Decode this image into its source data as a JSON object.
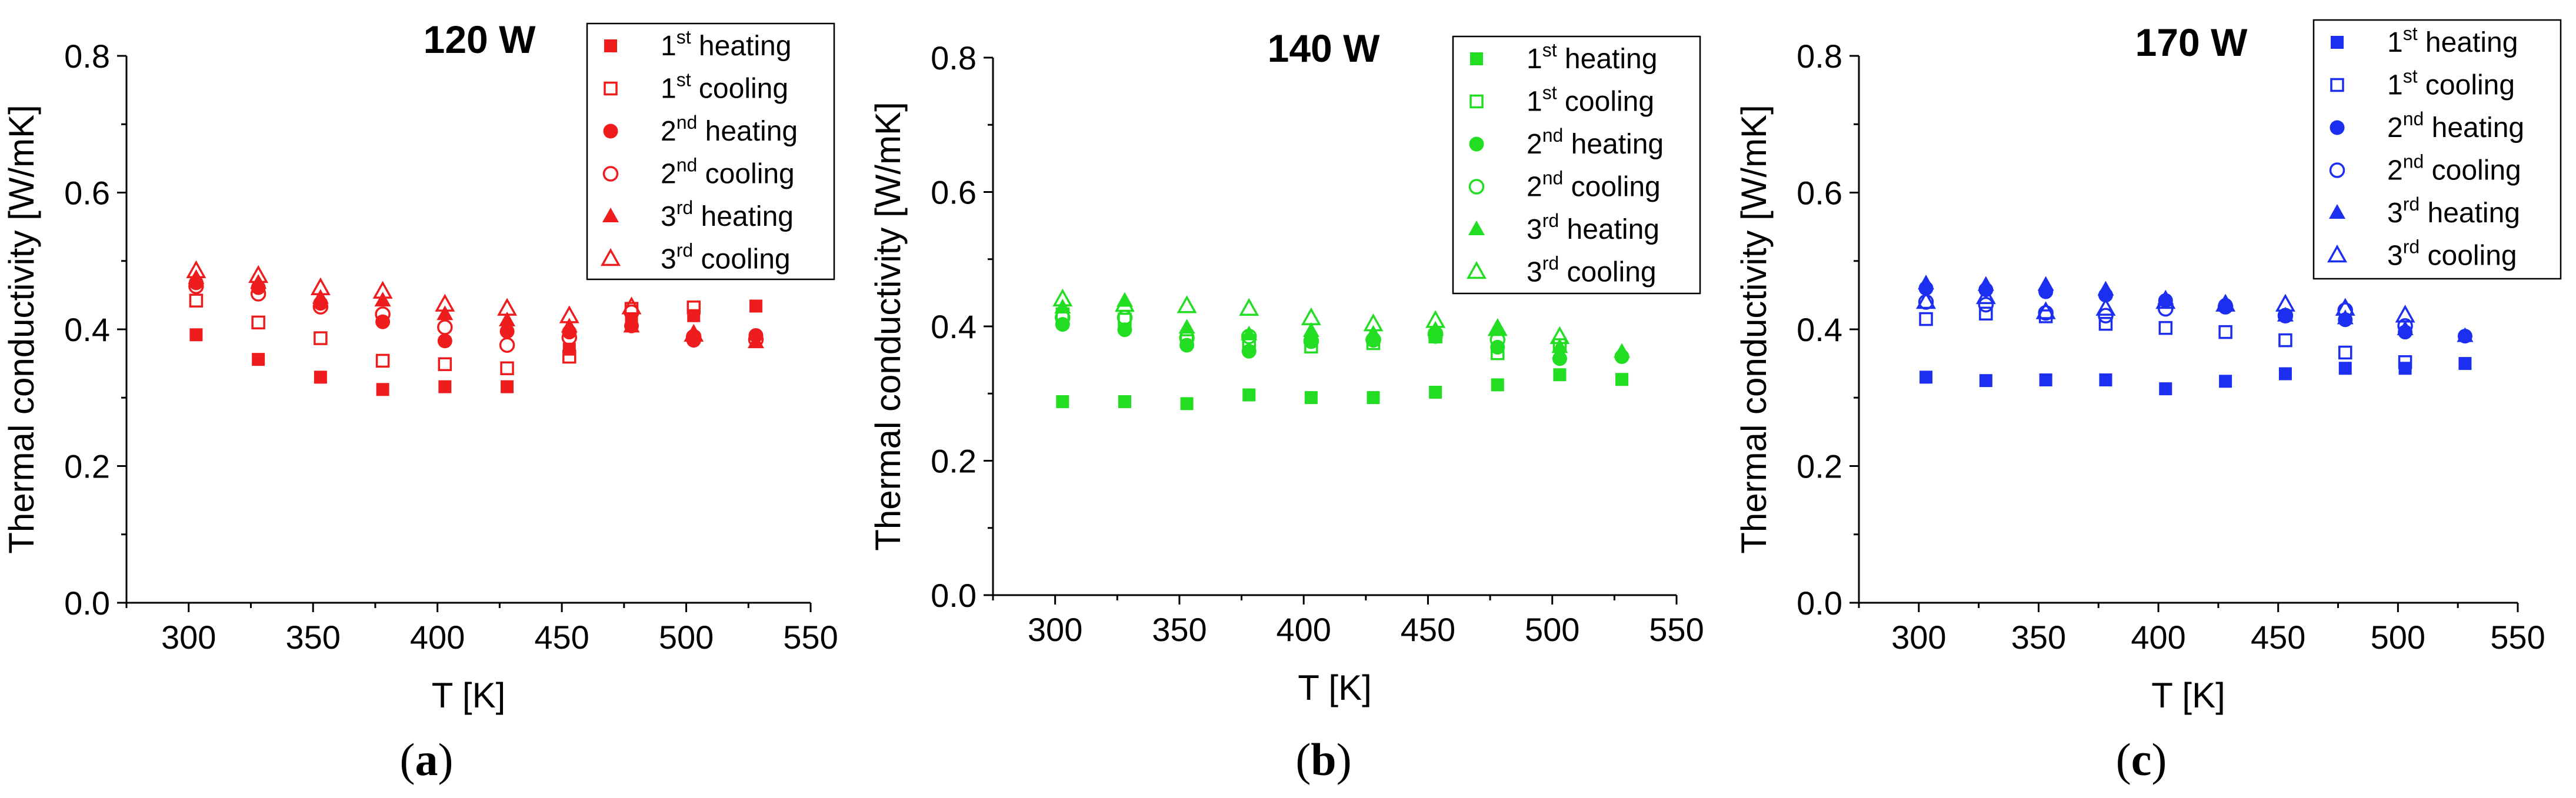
{
  "chart_data": [
    {
      "type": "scatter",
      "panel_label": "(a)",
      "title": "120 W",
      "xlabel": "T [K]",
      "ylabel": "Thermal conductivity [W/mK]",
      "xlim": [
        275,
        550
      ],
      "ylim": [
        0.0,
        0.8
      ],
      "xticks": [
        "300",
        "350",
        "400",
        "450",
        "500",
        "550"
      ],
      "yticks": [
        "0.0",
        "0.2",
        "0.4",
        "0.6",
        "0.8"
      ],
      "color": "#ee1c1c",
      "legend_position": "top-right",
      "series": [
        {
          "name": "1st heating",
          "base": "1",
          "sup": "st",
          "suffix": " heating",
          "marker": "square",
          "filled": true,
          "x": [
            303,
            328,
            353,
            378,
            403,
            428,
            453,
            478,
            503,
            528
          ],
          "y": [
            0.392,
            0.356,
            0.33,
            0.312,
            0.316,
            0.316,
            0.371,
            0.412,
            0.42,
            0.434
          ]
        },
        {
          "name": "1st cooling",
          "base": "1",
          "sup": "st",
          "suffix": " cooling",
          "marker": "square",
          "filled": false,
          "x": [
            303,
            328,
            353,
            378,
            403,
            428,
            453,
            478,
            503
          ],
          "y": [
            0.442,
            0.41,
            0.387,
            0.354,
            0.349,
            0.343,
            0.36,
            0.43,
            0.432
          ]
        },
        {
          "name": "2nd heating",
          "base": "2",
          "sup": "nd",
          "suffix": " heating",
          "marker": "circle",
          "filled": true,
          "x": [
            303,
            328,
            353,
            378,
            403,
            428,
            453,
            478,
            503,
            528
          ],
          "y": [
            0.468,
            0.461,
            0.438,
            0.411,
            0.383,
            0.397,
            0.396,
            0.405,
            0.384,
            0.391
          ]
        },
        {
          "name": "2nd cooling",
          "base": "2",
          "sup": "nd",
          "suffix": " cooling",
          "marker": "circle",
          "filled": false,
          "x": [
            303,
            328,
            353,
            378,
            403,
            428,
            453,
            478,
            503,
            528
          ],
          "y": [
            0.463,
            0.452,
            0.433,
            0.422,
            0.403,
            0.377,
            0.388,
            0.425,
            0.389,
            0.385
          ]
        },
        {
          "name": "3rd heating",
          "base": "3",
          "sup": "rd",
          "suffix": " heating",
          "marker": "triangle",
          "filled": true,
          "x": [
            303,
            328,
            353,
            378,
            403,
            428,
            453,
            478,
            503,
            528
          ],
          "y": [
            0.475,
            0.468,
            0.446,
            0.442,
            0.422,
            0.413,
            0.404,
            0.404,
            0.391,
            0.381
          ]
        },
        {
          "name": "3rd cooling",
          "base": "3",
          "sup": "rd",
          "suffix": " cooling",
          "marker": "triangle",
          "filled": false,
          "x": [
            303,
            328,
            353,
            378,
            403,
            428,
            453,
            478,
            503
          ],
          "y": [
            0.485,
            0.478,
            0.46,
            0.455,
            0.436,
            0.43,
            0.419,
            0.432,
            0.392
          ]
        }
      ]
    },
    {
      "type": "scatter",
      "panel_label": "(b)",
      "title": "140 W",
      "xlabel": "T [K]",
      "ylabel": "Thermal conductivity [W/mK]",
      "xlim": [
        275,
        550
      ],
      "ylim": [
        0.0,
        0.8
      ],
      "xticks": [
        "300",
        "350",
        "400",
        "450",
        "500",
        "550"
      ],
      "yticks": [
        "0.0",
        "0.2",
        "0.4",
        "0.6",
        "0.8"
      ],
      "color": "#22dd22",
      "legend_position": "top-right",
      "series": [
        {
          "name": "1st heating",
          "base": "1",
          "sup": "st",
          "suffix": " heating",
          "marker": "square",
          "filled": true,
          "x": [
            303,
            328,
            353,
            378,
            403,
            428,
            453,
            478,
            503,
            528
          ],
          "y": [
            0.288,
            0.288,
            0.285,
            0.298,
            0.294,
            0.294,
            0.302,
            0.313,
            0.328,
            0.321
          ]
        },
        {
          "name": "1st cooling",
          "base": "1",
          "sup": "st",
          "suffix": " cooling",
          "marker": "square",
          "filled": false,
          "x": [
            303,
            328,
            353,
            378,
            403,
            428,
            453,
            478,
            503
          ],
          "y": [
            0.418,
            0.41,
            0.378,
            0.378,
            0.37,
            0.375,
            0.385,
            0.36,
            0.372
          ]
        },
        {
          "name": "2nd heating",
          "base": "2",
          "sup": "nd",
          "suffix": " heating",
          "marker": "circle",
          "filled": true,
          "x": [
            303,
            328,
            353,
            378,
            403,
            428,
            453,
            478,
            503,
            528
          ],
          "y": [
            0.403,
            0.395,
            0.372,
            0.363,
            0.38,
            0.38,
            0.385,
            0.369,
            0.352,
            0.355
          ]
        },
        {
          "name": "2nd cooling",
          "base": "2",
          "sup": "nd",
          "suffix": " cooling",
          "marker": "circle",
          "filled": false,
          "x": [
            303,
            328,
            353,
            378,
            403,
            428,
            453,
            478
          ],
          "y": [
            0.413,
            0.413,
            0.383,
            0.385,
            0.378,
            0.38,
            0.389,
            0.38
          ]
        },
        {
          "name": "3rd heating",
          "base": "3",
          "sup": "rd",
          "suffix": " heating",
          "marker": "triangle",
          "filled": true,
          "x": [
            303,
            328,
            353,
            378,
            403,
            428,
            453,
            478,
            503,
            528
          ],
          "y": [
            0.428,
            0.438,
            0.398,
            0.388,
            0.393,
            0.389,
            0.395,
            0.395,
            0.369,
            0.362
          ]
        },
        {
          "name": "3rd cooling",
          "base": "3",
          "sup": "rd",
          "suffix": " cooling",
          "marker": "triangle",
          "filled": false,
          "x": [
            303,
            328,
            353,
            378,
            403,
            428,
            453,
            478,
            503
          ],
          "y": [
            0.44,
            0.432,
            0.43,
            0.426,
            0.412,
            0.403,
            0.408,
            0.396,
            0.384
          ]
        }
      ]
    },
    {
      "type": "scatter",
      "panel_label": "(c)",
      "title": "170 W",
      "xlabel": "T [K]",
      "ylabel": "Thermal conductivity [W/mK]",
      "xlim": [
        275,
        550
      ],
      "ylim": [
        0.0,
        0.8
      ],
      "xticks": [
        "300",
        "350",
        "400",
        "450",
        "500",
        "550"
      ],
      "yticks": [
        "0.0",
        "0.2",
        "0.4",
        "0.6",
        "0.8"
      ],
      "color": "#1c2ff0",
      "legend_position": "top-right",
      "series": [
        {
          "name": "1st heating",
          "base": "1",
          "sup": "st",
          "suffix": " heating",
          "marker": "square",
          "filled": true,
          "x": [
            303,
            328,
            353,
            378,
            403,
            428,
            453,
            478,
            503,
            528
          ],
          "y": [
            0.33,
            0.325,
            0.326,
            0.326,
            0.313,
            0.324,
            0.335,
            0.343,
            0.343,
            0.35
          ]
        },
        {
          "name": "1st cooling",
          "base": "1",
          "sup": "st",
          "suffix": " cooling",
          "marker": "square",
          "filled": false,
          "x": [
            303,
            328,
            353,
            378,
            403,
            428,
            453,
            478,
            503
          ],
          "y": [
            0.415,
            0.423,
            0.419,
            0.408,
            0.402,
            0.396,
            0.384,
            0.366,
            0.352
          ]
        },
        {
          "name": "2nd heating",
          "base": "2",
          "sup": "nd",
          "suffix": " heating",
          "marker": "circle",
          "filled": true,
          "x": [
            303,
            328,
            353,
            378,
            403,
            428,
            453,
            478,
            503,
            528
          ],
          "y": [
            0.46,
            0.458,
            0.455,
            0.45,
            0.442,
            0.435,
            0.42,
            0.414,
            0.396,
            0.39
          ]
        },
        {
          "name": "2nd cooling",
          "base": "2",
          "sup": "nd",
          "suffix": " cooling",
          "marker": "circle",
          "filled": false,
          "x": [
            303,
            328,
            353,
            378,
            403,
            428,
            453,
            478,
            503
          ],
          "y": [
            0.44,
            0.436,
            0.424,
            0.42,
            0.43,
            0.433,
            0.42,
            0.428,
            0.405
          ]
        },
        {
          "name": "3rd heating",
          "base": "3",
          "sup": "rd",
          "suffix": " heating",
          "marker": "triangle",
          "filled": true,
          "x": [
            303,
            328,
            353,
            378,
            403,
            428,
            453,
            478,
            503,
            528
          ],
          "y": [
            0.467,
            0.465,
            0.465,
            0.458,
            0.445,
            0.438,
            0.42,
            0.416,
            0.4,
            0.39
          ]
        },
        {
          "name": "3rd cooling",
          "base": "3",
          "sup": "rd",
          "suffix": " cooling",
          "marker": "triangle",
          "filled": false,
          "x": [
            303,
            328,
            353,
            378,
            403,
            428,
            453,
            478,
            503
          ],
          "y": [
            0.44,
            0.447,
            0.425,
            0.43,
            0.44,
            0.436,
            0.436,
            0.43,
            0.42
          ]
        }
      ]
    }
  ]
}
